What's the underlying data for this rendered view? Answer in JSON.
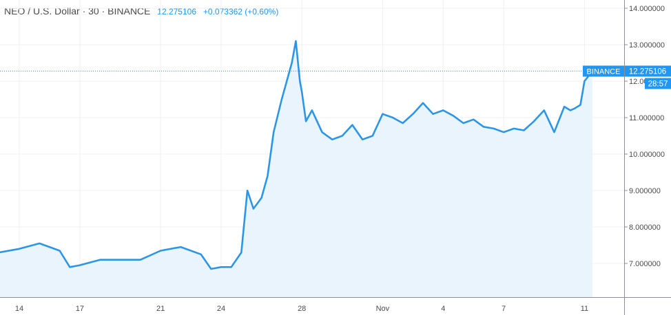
{
  "header": {
    "symbol": "NEO / U.S. Dollar · 30 · BINANCE",
    "last": "12.275106",
    "change": "+0.073362 (+0.60%)"
  },
  "price_tags": {
    "exchange": "BINANCE",
    "value": "12.275106",
    "countdown": "28:57"
  },
  "colors": {
    "line": "#2b95e8",
    "fill": "#eaf4fd",
    "grid": "#eef0f3",
    "tag": "#2196f3"
  },
  "chart_data": {
    "type": "area",
    "title": "NEO / U.S. Dollar · 30 · BINANCE",
    "xlabel": "",
    "ylabel": "",
    "grid": true,
    "x_ticks": [
      "14",
      "17",
      "21",
      "24",
      "28",
      "Nov",
      "4",
      "7",
      "11"
    ],
    "y_ticks": [
      "7.000000",
      "8.000000",
      "9.000000",
      "10.000000",
      "11.000000",
      "12.000000",
      "13.000000",
      "14.000000"
    ],
    "ylim": [
      6.0,
      14.1
    ],
    "x_days": [
      13.0,
      14,
      15,
      16,
      16.5,
      17,
      18,
      19,
      20,
      21,
      22,
      23,
      23.5,
      24,
      24.5,
      25,
      25.3,
      25.6,
      26,
      26.3,
      26.6,
      27,
      27.5,
      27.7,
      27.9,
      28.0,
      28.2,
      28.5,
      29,
      29.5,
      30,
      30.5,
      31,
      31.5,
      32,
      32.5,
      33,
      33.5,
      34,
      34.5,
      35,
      35.5,
      36,
      36.5,
      37,
      37.5,
      38,
      38.5,
      39,
      39.5,
      40,
      40.5,
      41,
      41.3,
      41.5,
      41.8,
      42.0,
      42.4
    ],
    "values": [
      7.3,
      7.4,
      7.55,
      7.35,
      6.9,
      6.95,
      7.1,
      7.1,
      7.1,
      7.35,
      7.45,
      7.25,
      6.85,
      6.9,
      6.9,
      7.3,
      9.0,
      8.5,
      8.8,
      9.4,
      10.6,
      11.5,
      12.5,
      13.1,
      12.0,
      11.7,
      10.9,
      11.2,
      10.6,
      10.4,
      10.5,
      10.8,
      10.4,
      10.5,
      11.1,
      11.0,
      10.85,
      11.1,
      11.4,
      11.1,
      11.2,
      11.05,
      10.85,
      10.95,
      10.75,
      10.7,
      10.6,
      10.7,
      10.65,
      10.9,
      11.2,
      10.6,
      11.3,
      11.2,
      11.25,
      11.35,
      12.0,
      12.28
    ],
    "last_value": 12.275106
  }
}
